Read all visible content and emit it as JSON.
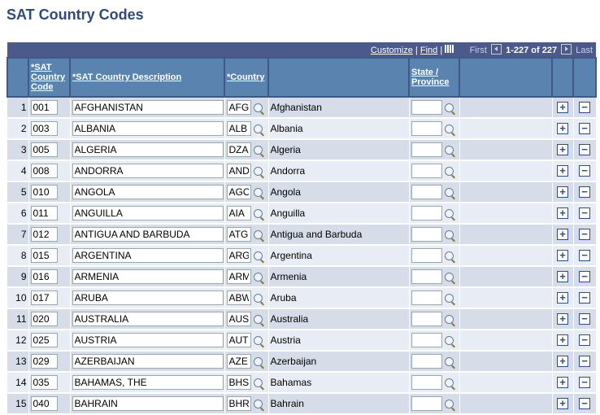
{
  "title": "SAT Country Codes",
  "toolbar": {
    "customize": "Customize",
    "find": "Find",
    "sep": "|",
    "first": "First",
    "range": "1-227 of 227",
    "last": "Last"
  },
  "columns": {
    "code": "*SAT Country Code",
    "desc": "*SAT Country Description",
    "country": "*Country",
    "state": "State / Province"
  },
  "rows": [
    {
      "n": "1",
      "code": "001",
      "desc": "AFGHANISTAN",
      "country": "AFG",
      "name": "Afghanistan"
    },
    {
      "n": "2",
      "code": "003",
      "desc": "ALBANIA",
      "country": "ALB",
      "name": "Albania"
    },
    {
      "n": "3",
      "code": "005",
      "desc": "ALGERIA",
      "country": "DZA",
      "name": "Algeria"
    },
    {
      "n": "4",
      "code": "008",
      "desc": "ANDORRA",
      "country": "AND",
      "name": "Andorra"
    },
    {
      "n": "5",
      "code": "010",
      "desc": "ANGOLA",
      "country": "AGO",
      "name": "Angola"
    },
    {
      "n": "6",
      "code": "011",
      "desc": "ANGUILLA",
      "country": "AIA",
      "name": "Anguilla"
    },
    {
      "n": "7",
      "code": "012",
      "desc": "ANTIGUA AND BARBUDA",
      "country": "ATG",
      "name": "Antigua and Barbuda"
    },
    {
      "n": "8",
      "code": "015",
      "desc": "ARGENTINA",
      "country": "ARG",
      "name": "Argentina"
    },
    {
      "n": "9",
      "code": "016",
      "desc": "ARMENIA",
      "country": "ARM",
      "name": "Armenia"
    },
    {
      "n": "10",
      "code": "017",
      "desc": "ARUBA",
      "country": "ABW",
      "name": "Aruba"
    },
    {
      "n": "11",
      "code": "020",
      "desc": "AUSTRALIA",
      "country": "AUS",
      "name": "Australia"
    },
    {
      "n": "12",
      "code": "025",
      "desc": "AUSTRIA",
      "country": "AUT",
      "name": "Austria"
    },
    {
      "n": "13",
      "code": "029",
      "desc": "AZERBAIJAN",
      "country": "AZE",
      "name": "Azerbaijan"
    },
    {
      "n": "14",
      "code": "035",
      "desc": "BAHAMAS, THE",
      "country": "BHS",
      "name": "Bahamas"
    },
    {
      "n": "15",
      "code": "040",
      "desc": "BAHRAIN",
      "country": "BHR",
      "name": "Bahrain"
    }
  ],
  "icons": {
    "add": "+",
    "remove": "−"
  }
}
